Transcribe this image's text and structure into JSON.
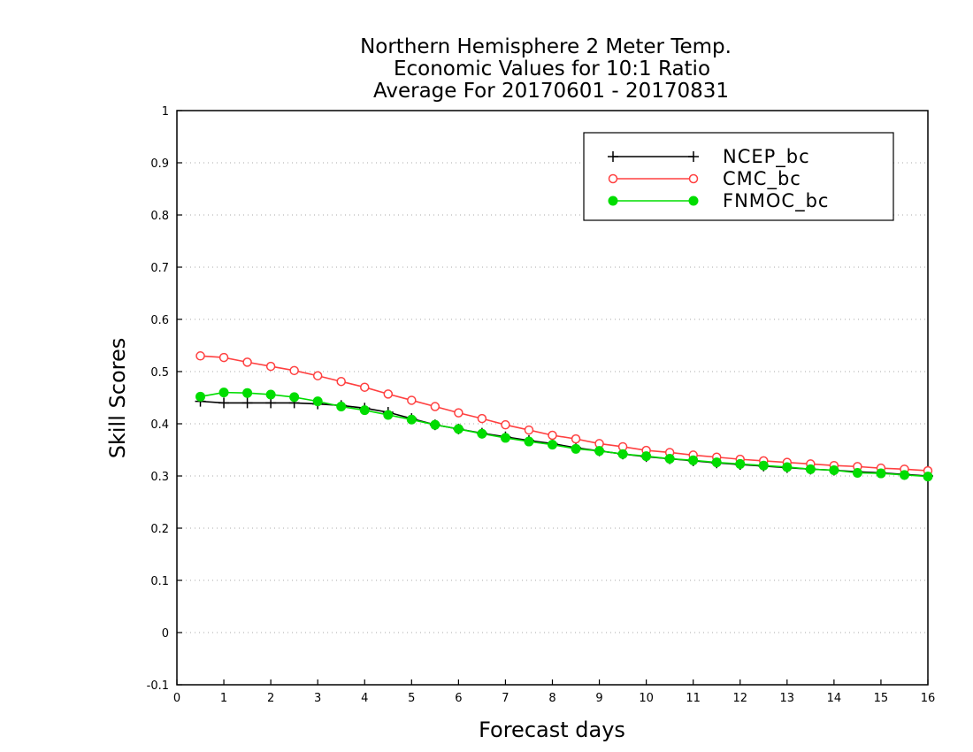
{
  "chart_data": {
    "type": "line",
    "title_lines": [
      "Northern Hemisphere 2 Meter Temp.",
      "Economic Values for 10:1 Ratio",
      "Average For 20170601 - 20170831"
    ],
    "xlabel": "Forecast days",
    "ylabel": "Skill Scores",
    "xlim": [
      0,
      16
    ],
    "ylim": [
      -0.1,
      1
    ],
    "xticks": [
      "0",
      "1",
      "2",
      "3",
      "4",
      "5",
      "6",
      "7",
      "8",
      "9",
      "10",
      "11",
      "12",
      "13",
      "14",
      "15",
      "16"
    ],
    "yticks": [
      "-0.1",
      "0",
      "0.1",
      "0.2",
      "0.3",
      "0.4",
      "0.5",
      "0.6",
      "0.7",
      "0.8",
      "0.9",
      "1"
    ],
    "grid": "horizontal dotted",
    "legend_position": "top-right",
    "x": [
      0.5,
      1,
      1.5,
      2,
      2.5,
      3,
      3.5,
      4,
      4.5,
      5,
      5.5,
      6,
      6.5,
      7,
      7.5,
      8,
      8.5,
      9,
      9.5,
      10,
      10.5,
      11,
      11.5,
      12,
      12.5,
      13,
      13.5,
      14,
      14.5,
      15,
      15.5,
      16
    ],
    "series": [
      {
        "name": "NCEP_bc",
        "color": "#000000",
        "marker": "plus",
        "values": [
          0.443,
          0.44,
          0.44,
          0.44,
          0.44,
          0.438,
          0.435,
          0.43,
          0.422,
          0.41,
          0.398,
          0.39,
          0.382,
          0.375,
          0.368,
          0.362,
          0.354,
          0.348,
          0.342,
          0.337,
          0.333,
          0.329,
          0.325,
          0.322,
          0.319,
          0.316,
          0.313,
          0.311,
          0.308,
          0.306,
          0.303,
          0.3
        ]
      },
      {
        "name": "CMC_bc",
        "color": "#ff4040",
        "marker": "open-circle",
        "values": [
          0.53,
          0.527,
          0.518,
          0.51,
          0.502,
          0.492,
          0.481,
          0.47,
          0.457,
          0.445,
          0.433,
          0.421,
          0.41,
          0.398,
          0.388,
          0.378,
          0.371,
          0.362,
          0.356,
          0.349,
          0.345,
          0.34,
          0.336,
          0.332,
          0.329,
          0.326,
          0.323,
          0.32,
          0.318,
          0.315,
          0.313,
          0.31
        ]
      },
      {
        "name": "FNMOC_bc",
        "color": "#00dd00",
        "marker": "filled-circle",
        "values": [
          0.452,
          0.46,
          0.459,
          0.456,
          0.451,
          0.443,
          0.433,
          0.426,
          0.417,
          0.408,
          0.398,
          0.39,
          0.381,
          0.373,
          0.366,
          0.36,
          0.352,
          0.348,
          0.342,
          0.338,
          0.333,
          0.33,
          0.326,
          0.323,
          0.32,
          0.317,
          0.313,
          0.311,
          0.306,
          0.305,
          0.302,
          0.299
        ]
      }
    ]
  }
}
